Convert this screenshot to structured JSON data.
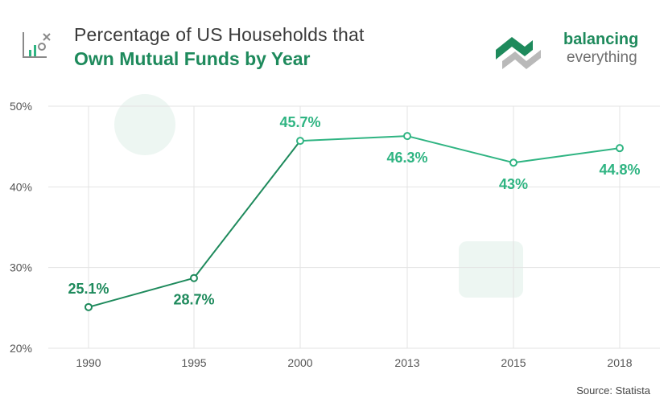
{
  "header": {
    "title_line1": "Percentage of US Households that",
    "title_line2": "Own Mutual Funds by Year",
    "icon": "chart-tools-icon"
  },
  "brand": {
    "name_line1": "balancing",
    "name_line2": "everything",
    "logo": "balancing-everything-logo"
  },
  "source": "Source: Statista",
  "colors": {
    "accent": "#1e8a5c",
    "line": "#2fb482",
    "grid": "#e3e3e3",
    "axis_text": "#555555"
  },
  "chart_data": {
    "type": "line",
    "title": "Percentage of US Households that Own Mutual Funds by Year",
    "xlabel": "",
    "ylabel": "",
    "categories": [
      "1990",
      "1995",
      "2000",
      "2013",
      "2015",
      "2018"
    ],
    "values": [
      25.1,
      28.7,
      45.7,
      46.3,
      43,
      44.8
    ],
    "data_labels": [
      "25.1%",
      "28.7%",
      "45.7%",
      "46.3%",
      "43%",
      "44.8%"
    ],
    "ylim": [
      20,
      50
    ],
    "yticks": [
      20,
      30,
      40,
      50
    ],
    "ytick_labels": [
      "20%",
      "30%",
      "40%",
      "50%"
    ],
    "grid": true
  }
}
